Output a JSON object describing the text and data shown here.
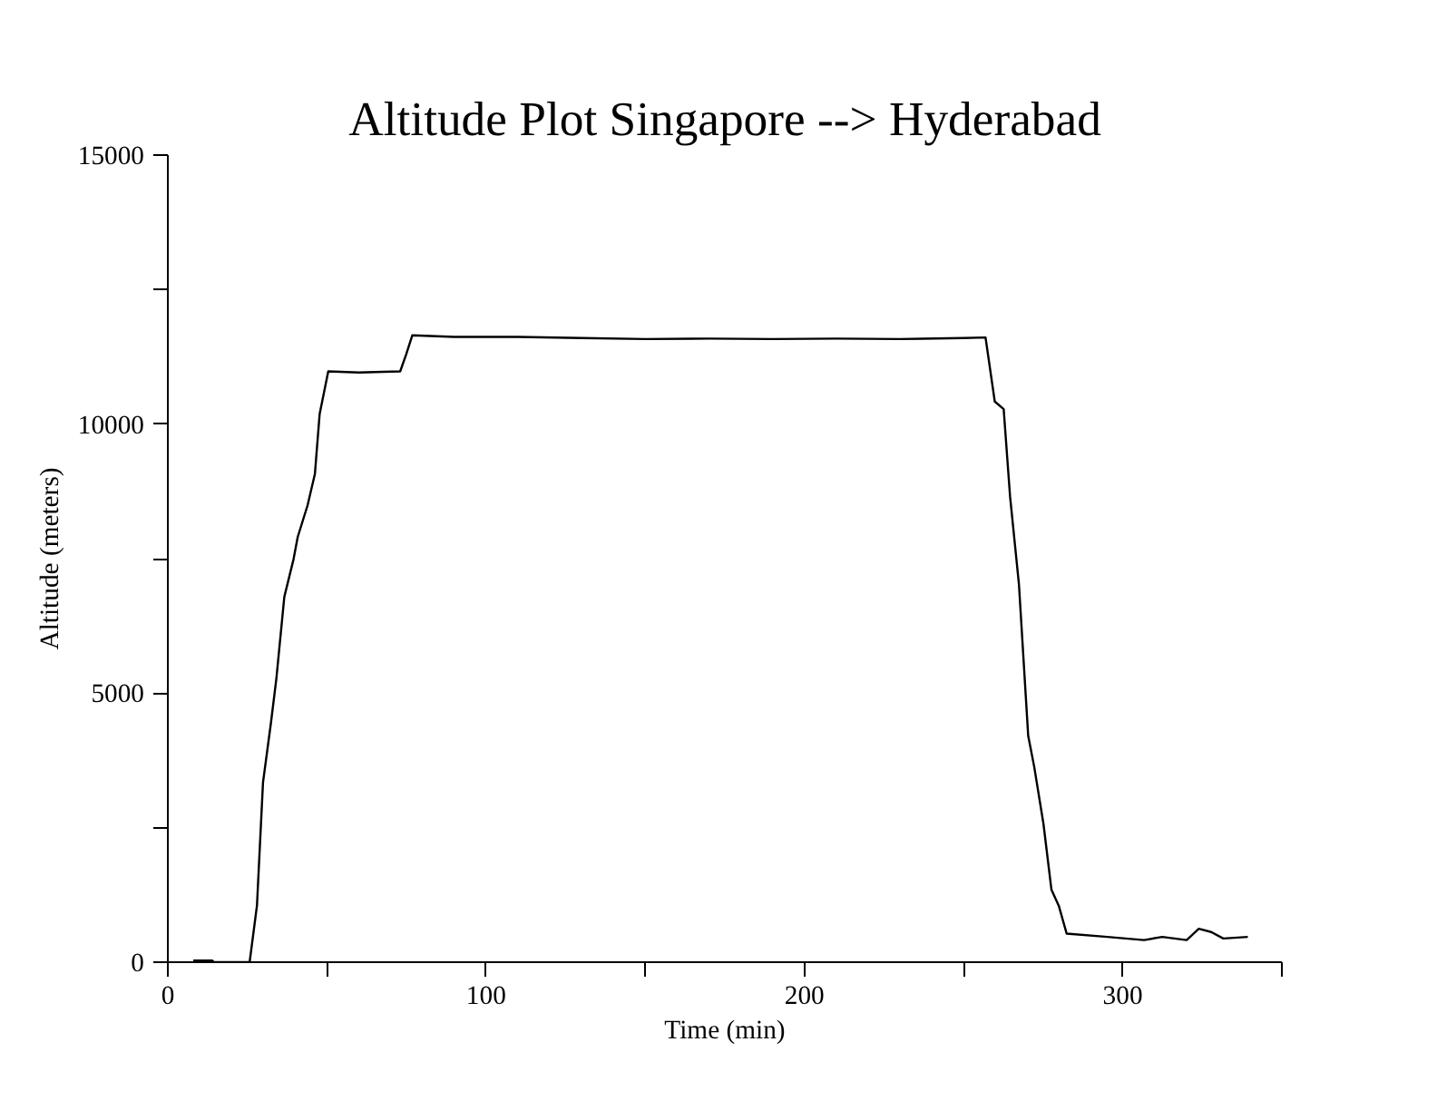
{
  "chart_data": {
    "type": "line",
    "title": "Altitude Plot Singapore --> Hyderabad",
    "xlabel": "Time (min)",
    "ylabel": "Altitude (meters)",
    "xlim": [
      0,
      350
    ],
    "ylim": [
      0,
      15000
    ],
    "xticks": [
      0,
      {
        "value": 50,
        "label": null
      },
      100,
      {
        "value": 150,
        "label": null
      },
      200,
      {
        "value": 250,
        "label": null
      },
      300,
      {
        "value": 350,
        "label": null
      }
    ],
    "yticks": [
      0,
      {
        "value": 2500,
        "label": null
      },
      5000,
      {
        "value": 7500,
        "label": null
      },
      10000,
      {
        "value": 12500,
        "label": null
      },
      15000
    ],
    "grid": false,
    "marker": "none",
    "line_style": "solid",
    "series": [
      {
        "color": "#000000",
        "x": [
          8,
          14,
          14.5,
          25.7,
          28,
          29.9,
          32.4,
          34.1,
          36.6,
          39.5,
          40.8,
          43.9,
          46.2,
          47.7,
          50.4,
          60,
          73,
          74.9,
          76.8,
          90,
          110,
          130,
          150,
          170,
          190,
          210,
          230,
          250,
          256.9,
          259.8,
          262.6,
          264.6,
          267.4,
          270.3,
          272.2,
          275.1,
          277.6,
          279.9,
          282.4,
          295.2,
          306.7,
          312.4,
          320.1,
          323.9,
          327.8,
          331.6,
          339.3
        ],
        "values": [
          30,
          30,
          0,
          0,
          1050,
          3340,
          4450,
          5270,
          6790,
          7490,
          7900,
          8490,
          9070,
          10190,
          10980,
          10960,
          10980,
          11300,
          11650,
          11620,
          11620,
          11600,
          11580,
          11590,
          11580,
          11590,
          11580,
          11600,
          11610,
          10420,
          10280,
          8660,
          7020,
          4210,
          3630,
          2570,
          1350,
          1050,
          530,
          470,
          410,
          470,
          410,
          620,
          560,
          440,
          470
        ]
      }
    ]
  }
}
